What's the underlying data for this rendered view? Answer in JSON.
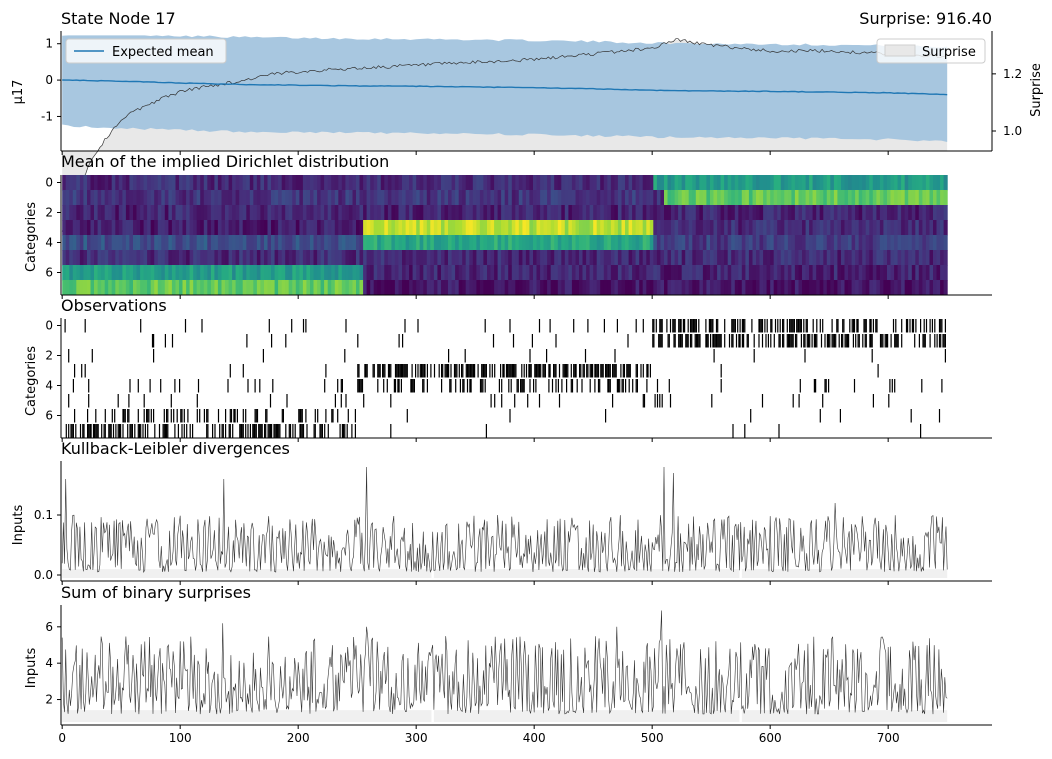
{
  "figure": {
    "panel1_title_left": "State Node 17",
    "panel1_title_right": "Surprise: 916.40",
    "panel1_ylabel_left": "μ17",
    "panel1_ylabel_right": "Surprise",
    "legend_expected_mean": "Expected mean",
    "legend_surprise": "Surprise",
    "panel2_title": "Mean of the implied Dirichlet distribution",
    "panel2_ylabel": "Categories",
    "panel3_title": "Observations",
    "panel3_ylabel": "Categories",
    "panel4_title": "Kullback-Leibler divergences",
    "panel4_ylabel": "Inputs",
    "panel5_title": "Sum of binary surprises",
    "panel5_ylabel": "Inputs"
  },
  "colors": {
    "mean_line": "#1f77b4",
    "band": "#a3c4de",
    "surprise_fill": "#e8e8e8",
    "trace": "#333333",
    "viridis_low": "#440154",
    "viridis_high": "#fde725"
  },
  "chart_data": [
    {
      "type": "line",
      "panel": "state-node",
      "title": "State Node 17",
      "ylabel": "μ17",
      "secondary_ylabel": "Surprise",
      "x_ticks": [
        0,
        100,
        200,
        300,
        400,
        500,
        600,
        700
      ],
      "y_ticks": [
        -1,
        0,
        1
      ],
      "y_ticks_right": [
        1.0,
        1.2
      ],
      "ylim": [
        -1.95,
        1.35
      ],
      "ylim_right": [
        0.93,
        1.35
      ],
      "xlim": [
        -1,
        788
      ],
      "n_trials": 750,
      "series": [
        {
          "name": "Expected mean",
          "x": [
            0,
            50,
            100,
            150,
            200,
            250,
            300,
            350,
            400,
            450,
            500,
            550,
            600,
            650,
            700,
            750
          ],
          "values": [
            0.0,
            -0.03,
            -0.08,
            -0.12,
            -0.14,
            -0.16,
            -0.17,
            -0.19,
            -0.21,
            -0.24,
            -0.28,
            -0.3,
            -0.31,
            -0.33,
            -0.35,
            -0.4
          ]
        },
        {
          "name": "Surprise",
          "x": [
            0,
            25,
            50,
            75,
            100,
            125,
            150,
            175,
            200,
            250,
            300,
            350,
            400,
            450,
            500,
            520,
            550,
            600,
            650,
            700,
            750
          ],
          "values": [
            0.93,
            1.05,
            1.12,
            1.14,
            1.16,
            1.17,
            1.18,
            1.2,
            1.21,
            1.22,
            1.23,
            1.24,
            1.25,
            1.27,
            1.29,
            1.32,
            1.3,
            1.28,
            1.28,
            1.27,
            1.26
          ]
        }
      ]
    },
    {
      "type": "heatmap",
      "panel": "dirichlet",
      "title": "Mean of the implied Dirichlet distribution",
      "ylabel": "Categories",
      "y_ticks": [
        0,
        2,
        4,
        6
      ],
      "rows": 8,
      "colormap": "viridis",
      "row_segments": [
        [
          {
            "x0": 0,
            "x1": 500,
            "v": 0.12
          },
          {
            "x0": 500,
            "x1": 750,
            "v": 0.55
          }
        ],
        [
          {
            "x0": 0,
            "x1": 510,
            "v": 0.15
          },
          {
            "x0": 510,
            "x1": 750,
            "v": 0.75
          }
        ],
        [
          {
            "x0": 0,
            "x1": 750,
            "v": 0.1
          }
        ],
        [
          {
            "x0": 0,
            "x1": 255,
            "v": 0.08
          },
          {
            "x0": 255,
            "x1": 500,
            "v": 0.9
          },
          {
            "x0": 500,
            "x1": 750,
            "v": 0.12
          }
        ],
        [
          {
            "x0": 0,
            "x1": 255,
            "v": 0.25
          },
          {
            "x0": 255,
            "x1": 500,
            "v": 0.6
          },
          {
            "x0": 500,
            "x1": 750,
            "v": 0.18
          }
        ],
        [
          {
            "x0": 0,
            "x1": 750,
            "v": 0.12
          }
        ],
        [
          {
            "x0": 0,
            "x1": 255,
            "v": 0.55
          },
          {
            "x0": 255,
            "x1": 750,
            "v": 0.1
          }
        ],
        [
          {
            "x0": 0,
            "x1": 255,
            "v": 0.75
          },
          {
            "x0": 255,
            "x1": 750,
            "v": 0.05
          }
        ]
      ]
    },
    {
      "type": "scatter",
      "panel": "observations",
      "title": "Observations",
      "ylabel": "Categories",
      "y_ticks": [
        0,
        2,
        4,
        6
      ],
      "rows": 8,
      "row_density": [
        [
          {
            "x0": 0,
            "x1": 500,
            "p": 0.05
          },
          {
            "x0": 500,
            "x1": 750,
            "p": 0.45
          }
        ],
        [
          {
            "x0": 0,
            "x1": 500,
            "p": 0.03
          },
          {
            "x0": 500,
            "x1": 750,
            "p": 0.5
          }
        ],
        [
          {
            "x0": 0,
            "x1": 750,
            "p": 0.03
          }
        ],
        [
          {
            "x0": 0,
            "x1": 250,
            "p": 0.02
          },
          {
            "x0": 250,
            "x1": 500,
            "p": 0.55
          },
          {
            "x0": 500,
            "x1": 750,
            "p": 0.03
          }
        ],
        [
          {
            "x0": 0,
            "x1": 250,
            "p": 0.07
          },
          {
            "x0": 250,
            "x1": 500,
            "p": 0.35
          },
          {
            "x0": 500,
            "x1": 750,
            "p": 0.05
          }
        ],
        [
          {
            "x0": 0,
            "x1": 750,
            "p": 0.05
          }
        ],
        [
          {
            "x0": 0,
            "x1": 250,
            "p": 0.3
          },
          {
            "x0": 250,
            "x1": 750,
            "p": 0.02
          }
        ],
        [
          {
            "x0": 0,
            "x1": 250,
            "p": 0.45
          },
          {
            "x0": 250,
            "x1": 750,
            "p": 0.015
          }
        ]
      ]
    },
    {
      "type": "line",
      "panel": "kl-divergence",
      "title": "Kullback-Leibler divergences",
      "ylabel": "Inputs",
      "y_ticks": [
        0.0,
        0.1
      ],
      "ylim": [
        -0.01,
        0.19
      ],
      "baseline": 0.005,
      "typical_range": [
        0.005,
        0.1
      ],
      "peaks": [
        {
          "x": 3,
          "v": 0.16
        },
        {
          "x": 137,
          "v": 0.16
        },
        {
          "x": 258,
          "v": 0.18
        },
        {
          "x": 510,
          "v": 0.18
        },
        {
          "x": 518,
          "v": 0.17
        },
        {
          "x": 655,
          "v": 0.12
        }
      ],
      "gaps": [
        313,
        574
      ]
    },
    {
      "type": "line",
      "panel": "binary-surprises",
      "title": "Sum of binary surprises",
      "ylabel": "Inputs",
      "x_ticks": [
        0,
        100,
        200,
        300,
        400,
        500,
        600,
        700
      ],
      "y_ticks": [
        2,
        4,
        6
      ],
      "ylim": [
        0.6,
        7.2
      ],
      "baseline": 1.2,
      "typical_range": [
        1.2,
        5.5
      ],
      "peaks": [
        {
          "x": 136,
          "v": 6.2
        },
        {
          "x": 258,
          "v": 6.0
        },
        {
          "x": 508,
          "v": 6.9
        },
        {
          "x": 470,
          "v": 6.0
        }
      ],
      "gaps": [
        313,
        574
      ]
    }
  ]
}
